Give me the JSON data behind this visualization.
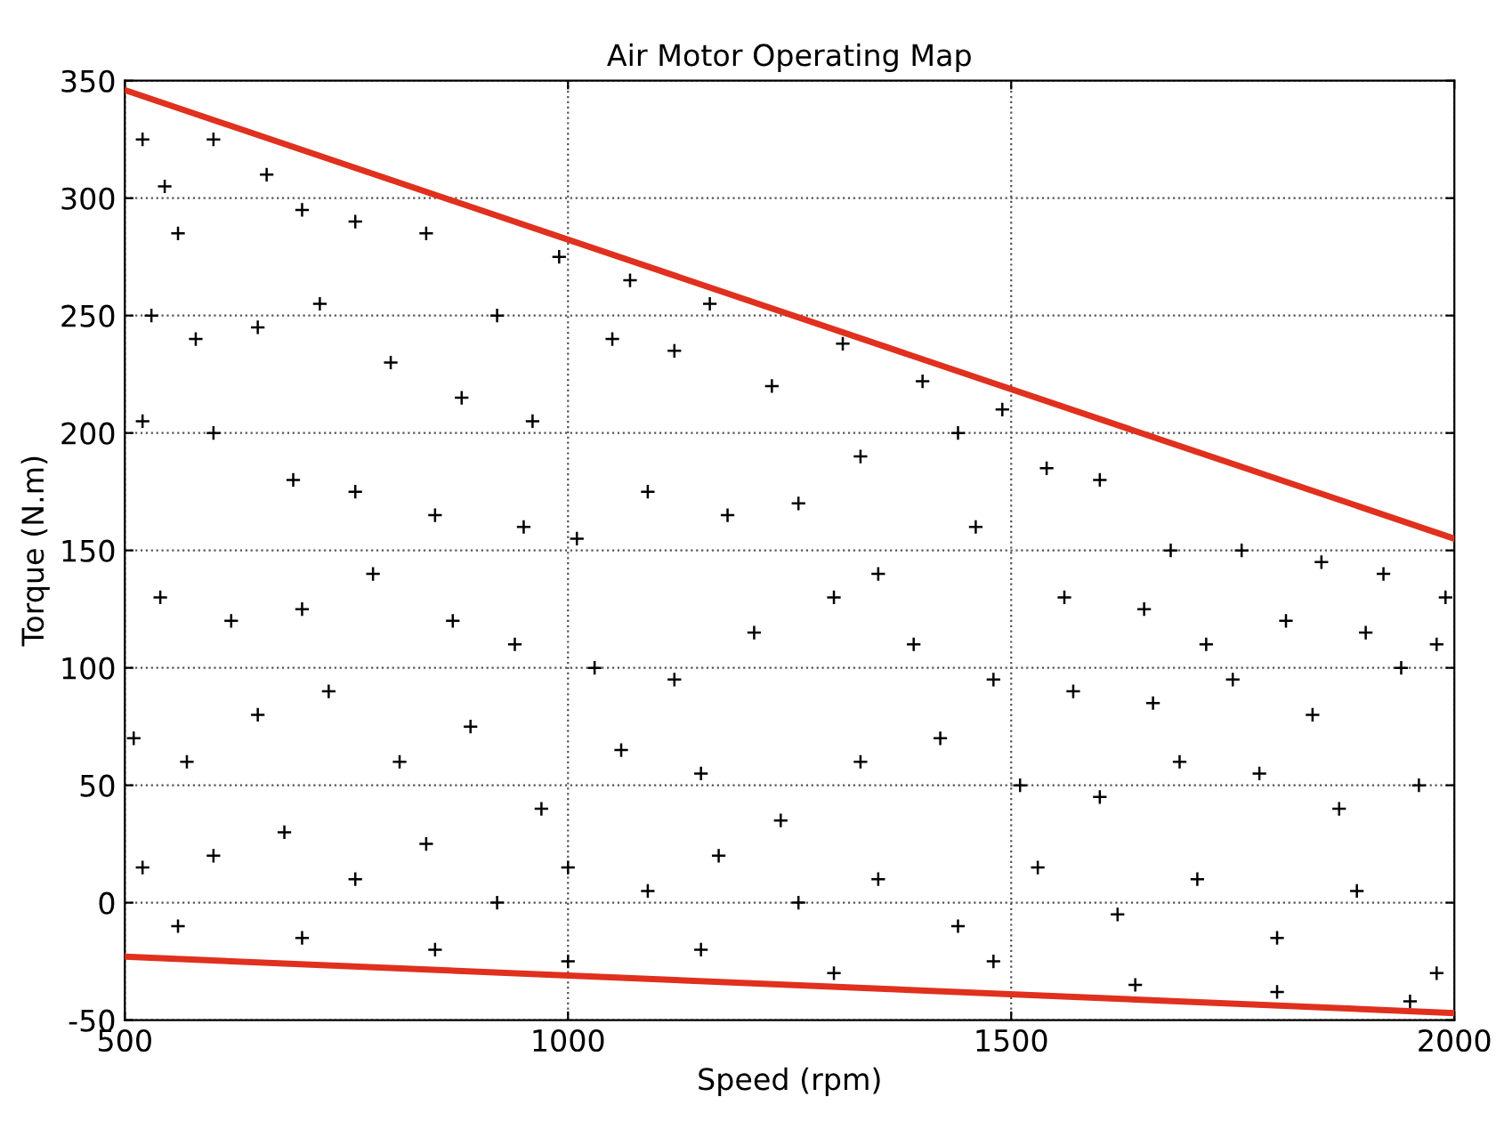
{
  "chart_data": {
    "type": "scatter",
    "title": "Air Motor Operating Map",
    "xlabel": "Speed (rpm)",
    "ylabel": "Torque (N.m)",
    "xlim": [
      500,
      2000
    ],
    "xticks": [
      500,
      1000,
      1500,
      2000
    ],
    "ylim": [
      -50,
      350
    ],
    "yticks": [
      -50,
      0,
      50,
      100,
      150,
      200,
      250,
      300,
      350
    ],
    "grid": true,
    "legend": false,
    "series": [
      {
        "color": "#000000",
        "marker": "cross",
        "x": [
          520,
          545,
          560,
          600,
          660,
          700,
          760,
          840,
          920,
          990,
          1070,
          1160,
          1310,
          1400,
          1490,
          530,
          580,
          650,
          720,
          800,
          880,
          960,
          1050,
          1120,
          1230,
          1330,
          1440,
          1540,
          1600,
          1680,
          1760,
          1850,
          1920,
          1990,
          520,
          600,
          690,
          760,
          850,
          950,
          1010,
          1090,
          1180,
          1260,
          1350,
          1460,
          1560,
          1650,
          1720,
          1810,
          1900,
          1980,
          540,
          620,
          700,
          780,
          870,
          940,
          1030,
          1120,
          1210,
          1300,
          1390,
          1480,
          1570,
          1660,
          1750,
          1840,
          1940,
          510,
          570,
          650,
          730,
          810,
          890,
          970,
          1060,
          1150,
          1240,
          1330,
          1420,
          1510,
          1600,
          1690,
          1780,
          1870,
          1960,
          520,
          600,
          680,
          760,
          840,
          920,
          1000,
          1090,
          1170,
          1260,
          1350,
          1440,
          1530,
          1620,
          1710,
          1800,
          1890,
          1980,
          560,
          700,
          850,
          1000,
          1150,
          1300,
          1480,
          1640,
          1800,
          1950
        ],
        "values": [
          325,
          305,
          285,
          325,
          310,
          295,
          290,
          285,
          250,
          275,
          265,
          255,
          238,
          222,
          210,
          250,
          240,
          245,
          255,
          230,
          215,
          205,
          240,
          235,
          220,
          190,
          200,
          185,
          180,
          150,
          150,
          145,
          140,
          130,
          205,
          200,
          180,
          175,
          165,
          160,
          155,
          175,
          165,
          170,
          140,
          160,
          130,
          125,
          110,
          120,
          115,
          110,
          130,
          120,
          125,
          140,
          120,
          110,
          100,
          95,
          115,
          130,
          110,
          95,
          90,
          85,
          95,
          80,
          100,
          70,
          60,
          80,
          90,
          60,
          75,
          40,
          65,
          55,
          35,
          60,
          70,
          50,
          45,
          60,
          55,
          40,
          50,
          15,
          20,
          30,
          10,
          25,
          0,
          15,
          5,
          20,
          0,
          10,
          -10,
          15,
          -5,
          10,
          -15,
          5,
          -30,
          -10,
          -15,
          -20,
          -25,
          -20,
          -30,
          -25,
          -35,
          -38,
          -42
        ]
      },
      {
        "type": "line",
        "color": "#e0301e",
        "line_style": "solid",
        "marker": "none",
        "x": [
          500,
          2000
        ],
        "values": [
          346,
          155
        ]
      },
      {
        "type": "line",
        "color": "#e0301e",
        "line_style": "solid",
        "marker": "none",
        "x": [
          500,
          2000
        ],
        "values": [
          -23,
          -47
        ]
      }
    ]
  }
}
